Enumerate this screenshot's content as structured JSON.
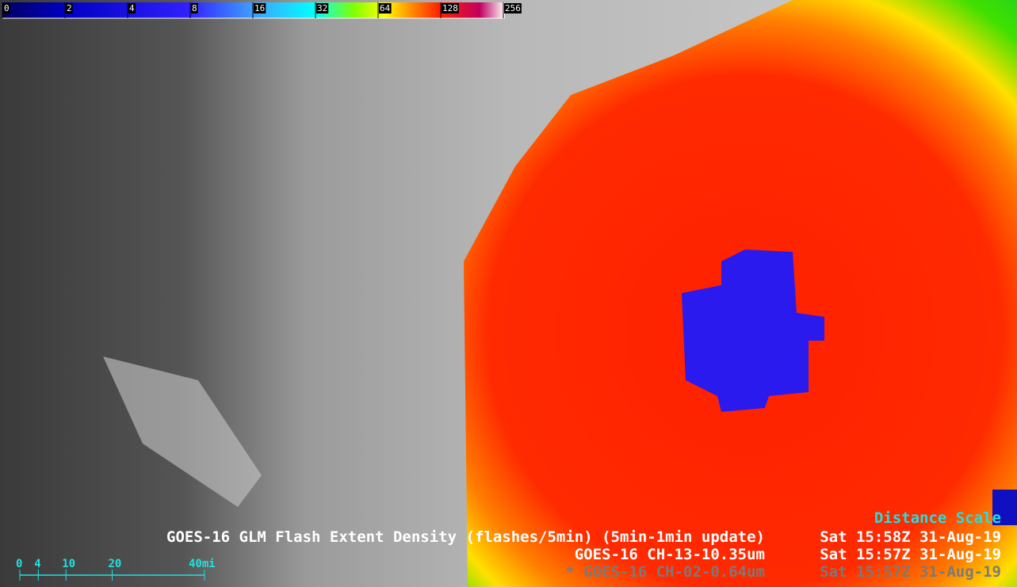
{
  "colorbar": {
    "ticks": [
      0,
      2,
      4,
      8,
      16,
      32,
      64,
      128,
      256
    ]
  },
  "captions": [
    {
      "product": "GOES-16 GLM Flash Extent Density (flashes/5min) (5min-1min update)",
      "time": "Sat 15:58Z 31-Aug-19"
    },
    {
      "product": "GOES-16 CH-13-10.35um",
      "time": "Sat 15:57Z 31-Aug-19"
    },
    {
      "product": "* GOES-16 CH-02-0.64um",
      "time": "Sat 15:57Z 31-Aug-19"
    }
  ],
  "distance_scale": {
    "title": "Distance Scale",
    "ticks": [
      0,
      4,
      10,
      20,
      {
        "value": 40,
        "label": "40mi"
      }
    ]
  }
}
